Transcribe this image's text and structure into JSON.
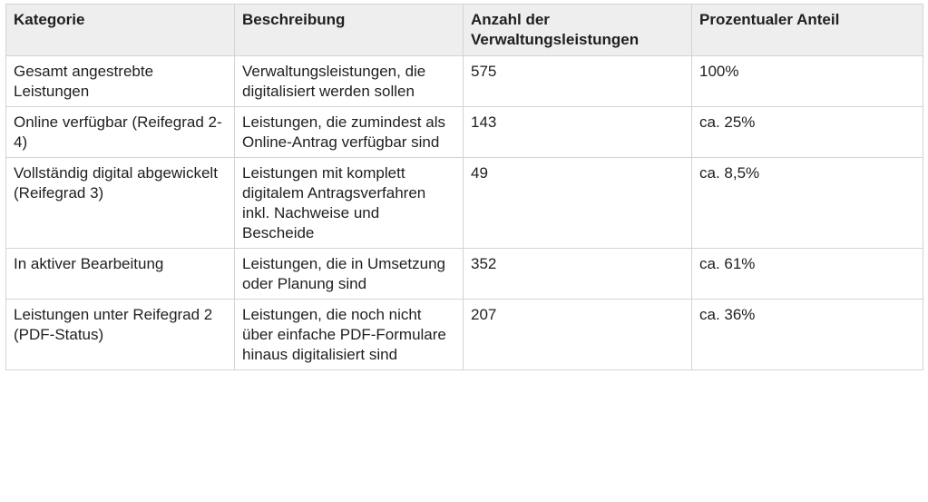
{
  "table": {
    "headers": [
      "Kategorie",
      "Beschreibung",
      "Anzahl der Verwaltungsleistungen",
      "Prozentualer Anteil"
    ],
    "rows": [
      {
        "kategorie": "Gesamt angestrebte Leistungen",
        "beschreibung": "Verwaltungsleistungen, die digitalisiert werden sollen",
        "anzahl": "575",
        "anteil": "100%"
      },
      {
        "kategorie": "Online verfügbar (Reifegrad 2-4)",
        "beschreibung": "Leistungen, die zumindest als Online-Antrag verfügbar sind",
        "anzahl": "143",
        "anteil": "ca. 25%"
      },
      {
        "kategorie": "Vollständig digital abgewickelt (Reifegrad 3)",
        "beschreibung": "Leistungen mit komplett digitalem Antragsverfahren inkl. Nachweise und Bescheide",
        "anzahl": "49",
        "anteil": "ca. 8,5%"
      },
      {
        "kategorie": "In aktiver Bearbeitung",
        "beschreibung": "Leistungen, die in Umsetzung oder Planung sind",
        "anzahl": "352",
        "anteil": "ca. 61%"
      },
      {
        "kategorie": "Leistungen unter Reifegrad 2 (PDF-Status)",
        "beschreibung": "Leistungen, die noch nicht über einfache PDF-Formulare hinaus digitalisiert sind",
        "anzahl": "207",
        "anteil": "ca. 36%"
      }
    ]
  }
}
